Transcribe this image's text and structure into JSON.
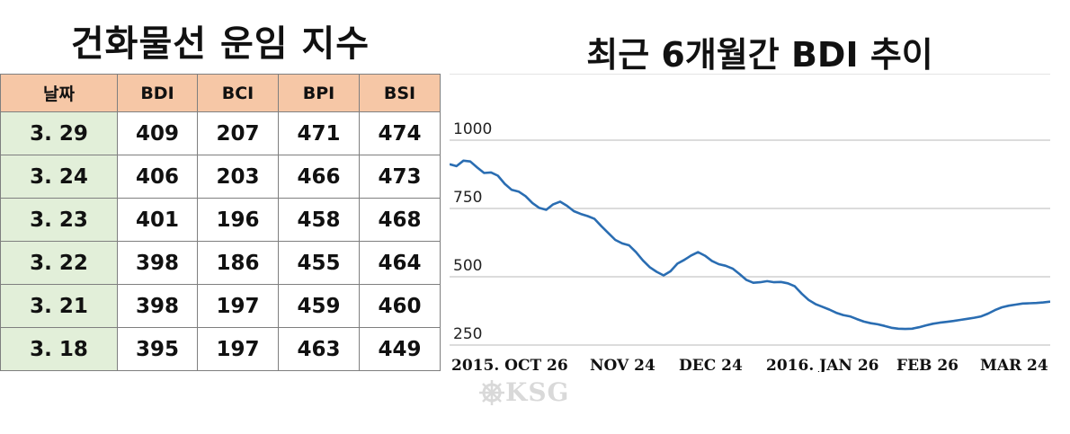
{
  "table": {
    "title": "건화물선 운임 지수",
    "headers": [
      "날짜",
      "BDI",
      "BCI",
      "BPI",
      "BSI"
    ],
    "rows": [
      [
        "3. 29",
        "409",
        "207",
        "471",
        "474"
      ],
      [
        "3. 24",
        "406",
        "203",
        "466",
        "473"
      ],
      [
        "3. 23",
        "401",
        "196",
        "458",
        "468"
      ],
      [
        "3. 22",
        "398",
        "186",
        "455",
        "464"
      ],
      [
        "3. 21",
        "398",
        "197",
        "459",
        "460"
      ],
      [
        "3. 18",
        "395",
        "197",
        "463",
        "449"
      ]
    ],
    "colors": {
      "header_bg": "#f6c7a6",
      "date_bg": "#e2efd9"
    }
  },
  "chart_data": {
    "type": "line",
    "title": "최근 6개월간 BDI 추이",
    "xlabel": "",
    "ylabel": "",
    "ylim": [
      250,
      1000
    ],
    "yticks": [
      "1000",
      "750",
      "500",
      "250"
    ],
    "xticks": [
      "2015. OCT 26",
      "NOV 24",
      "DEC 24",
      "2016. JAN 26",
      "FEB 26",
      "MAR 24"
    ],
    "grid": true,
    "line_color": "#2a6db2",
    "series": [
      {
        "values": [
          912,
          905,
          925,
          922,
          900,
          880,
          882,
          870,
          840,
          818,
          812,
          795,
          770,
          752,
          745,
          765,
          775,
          760,
          740,
          730,
          722,
          712,
          685,
          660,
          635,
          622,
          615,
          590,
          560,
          535,
          518,
          505,
          520,
          548,
          562,
          578,
          590,
          577,
          558,
          546,
          540,
          530,
          510,
          488,
          478,
          480,
          484,
          480,
          481,
          476,
          465,
          438,
          415,
          400,
          390,
          380,
          368,
          360,
          355,
          345,
          336,
          330,
          326,
          320,
          313,
          310,
          309,
          310,
          315,
          322,
          328,
          332,
          335,
          338,
          342,
          346,
          350,
          355,
          365,
          378,
          388,
          394,
          398,
          402,
          403,
          404,
          406,
          409
        ]
      }
    ]
  },
  "watermark": {
    "text": "KSG"
  }
}
